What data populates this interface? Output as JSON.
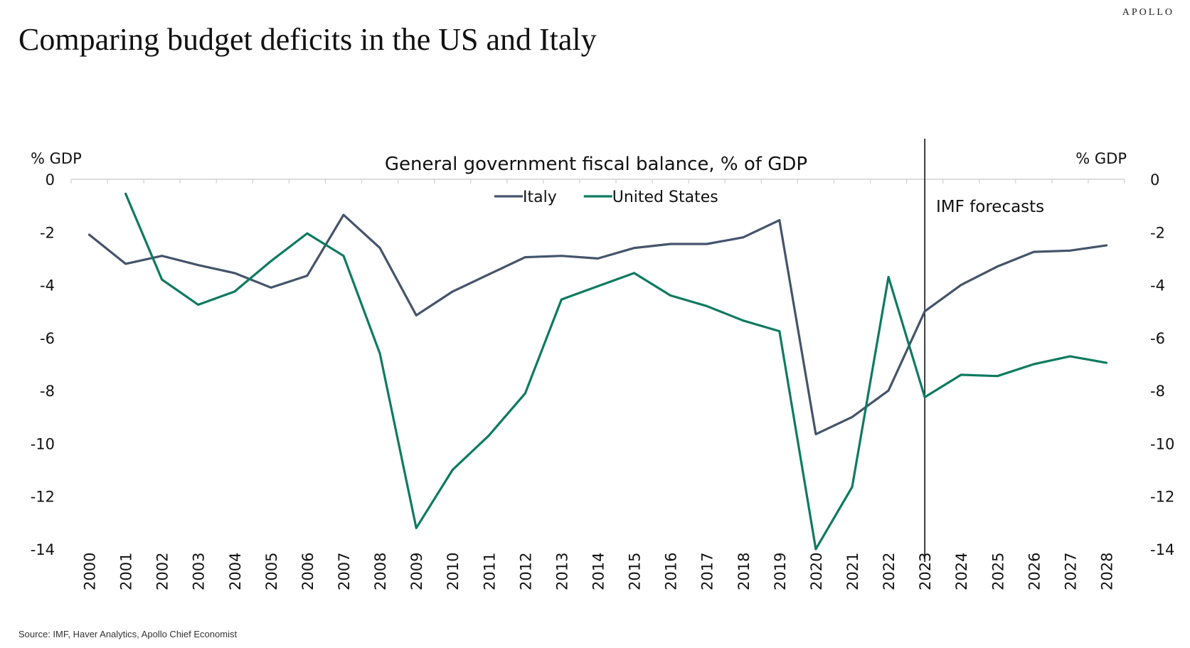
{
  "brand": "APOLLO",
  "title": "Comparing budget deficits in the US and Italy",
  "source": "Source: IMF, Haver Analytics, Apollo Chief Economist",
  "colors": {
    "italy": "#44546A",
    "us": "#0E7A61",
    "axis": "#d0d0d0",
    "divider": "#000000"
  },
  "chart_data": {
    "type": "line",
    "title": "General government fiscal balance, % of GDP",
    "ylabel_left": "% GDP",
    "ylabel_right": "% GDP",
    "ylim": [
      -14,
      0
    ],
    "yticks": [
      0,
      -2,
      -4,
      -6,
      -8,
      -10,
      -12,
      -14
    ],
    "annotation": "IMF forecasts",
    "forecast_start": "2023",
    "legend_placement": "top-center",
    "x": [
      "2000",
      "2001",
      "2002",
      "2003",
      "2004",
      "2005",
      "2006",
      "2007",
      "2008",
      "2009",
      "2010",
      "2011",
      "2012",
      "2013",
      "2014",
      "2015",
      "2016",
      "2017",
      "2018",
      "2019",
      "2020",
      "2021",
      "2022",
      "2023",
      "2024",
      "2025",
      "2026",
      "2027",
      "2028"
    ],
    "series": [
      {
        "name": "Italy",
        "color": "#44546A",
        "values": [
          -2.1,
          -3.2,
          -2.9,
          -3.25,
          -3.55,
          -4.1,
          -3.65,
          -1.35,
          -2.6,
          -5.15,
          -4.25,
          -3.6,
          -2.95,
          -2.9,
          -3.0,
          -2.6,
          -2.45,
          -2.45,
          -2.2,
          -1.55,
          -9.65,
          -9.0,
          -8.0,
          -5.0,
          -4.0,
          -3.3,
          -2.75,
          -2.7,
          -2.5
        ]
      },
      {
        "name": "United States",
        "color": "#0E7A61",
        "values": [
          null,
          -0.55,
          -3.8,
          -4.75,
          -4.25,
          -3.1,
          -2.05,
          -2.9,
          -6.6,
          -13.2,
          -11.0,
          -9.7,
          -8.1,
          -4.55,
          -4.05,
          -3.55,
          -4.4,
          -4.8,
          -5.35,
          -5.75,
          -14.0,
          -11.65,
          -3.7,
          -8.25,
          -7.4,
          -7.45,
          -7.0,
          -6.7,
          -6.95
        ]
      }
    ]
  }
}
